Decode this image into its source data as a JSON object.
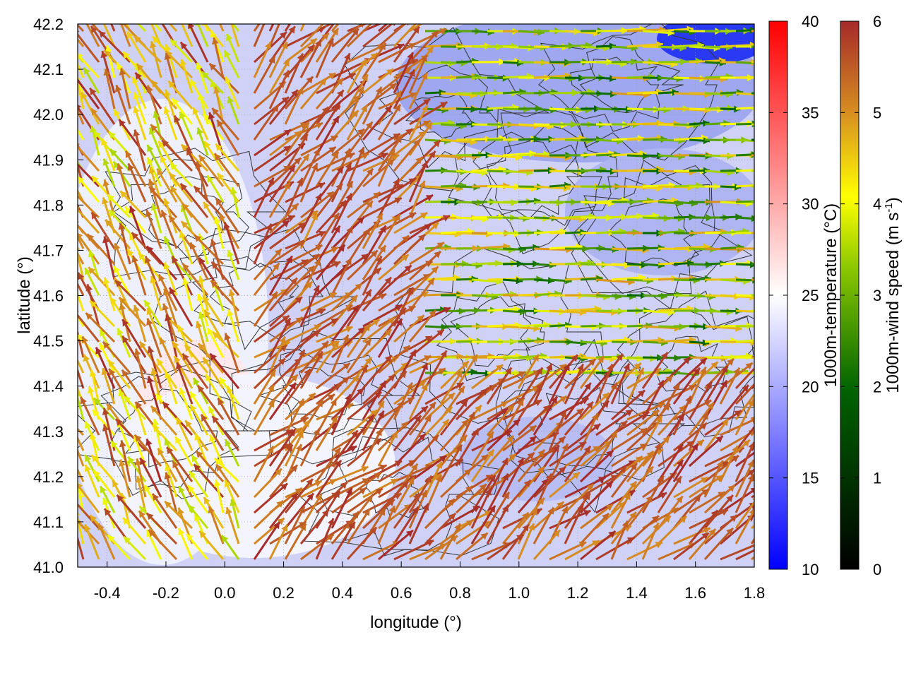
{
  "chart_data": {
    "type": "heatmap",
    "title": "",
    "xlabel": "longitude (°)",
    "ylabel": "latitude (°)",
    "xlim": [
      -0.5,
      1.8
    ],
    "ylim": [
      41.0,
      42.2
    ],
    "x_ticks": [
      "-0.4",
      "-0.2",
      "0.0",
      "0.2",
      "0.4",
      "0.6",
      "0.8",
      "1.0",
      "1.2",
      "1.4",
      "1.6",
      "1.8"
    ],
    "y_ticks": [
      "41.0",
      "41.1",
      "41.2",
      "41.3",
      "41.4",
      "41.5",
      "41.6",
      "41.7",
      "41.8",
      "41.9",
      "42.0",
      "42.1",
      "42.2"
    ],
    "grid": true,
    "overlays": [
      "terrain contour lines",
      "wind vectors colored by speed"
    ],
    "temperature_colorbar": {
      "label": "1000m-temperature (°C)",
      "range": [
        10,
        40
      ],
      "ticks": [
        "10",
        "15",
        "20",
        "25",
        "30",
        "35",
        "40"
      ],
      "colors": [
        "#0000ff",
        "#ffffff",
        "#ff0000"
      ]
    },
    "windspeed_colorbar": {
      "label": "1000m-wind speed (m s",
      "label_superscript": "-1",
      "label_close": ")",
      "range": [
        0,
        6
      ],
      "ticks": [
        "0",
        "1",
        "2",
        "3",
        "4",
        "5",
        "6"
      ],
      "colors": [
        "#000000",
        "#006400",
        "#8cc800",
        "#ffff00",
        "#d89020",
        "#a52a2a"
      ]
    }
  }
}
